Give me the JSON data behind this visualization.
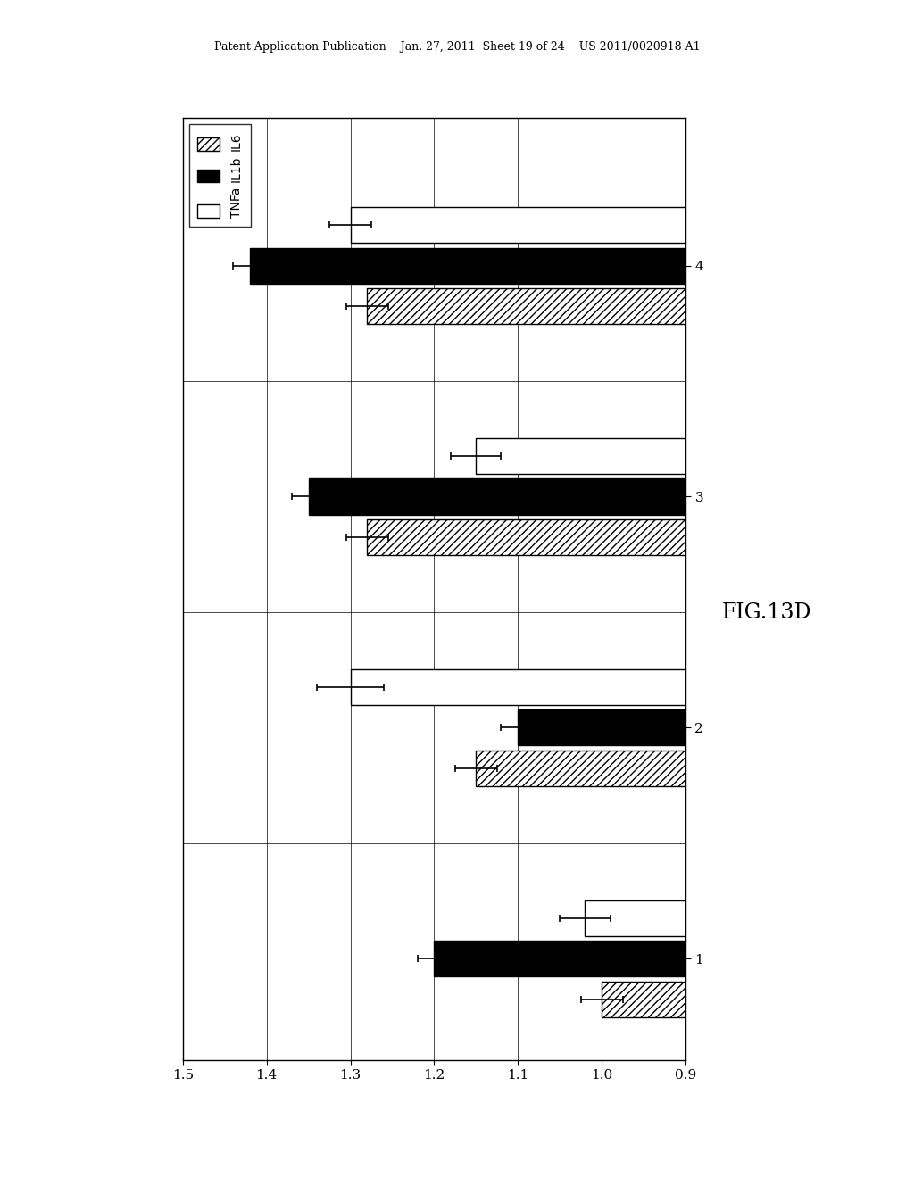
{
  "groups": [
    "1",
    "2",
    "3",
    "4"
  ],
  "series_labels": [
    "IL6",
    "IL1b",
    "TNFa"
  ],
  "values": {
    "TNFa": [
      1.02,
      1.3,
      1.15,
      1.3
    ],
    "IL1b": [
      1.2,
      1.1,
      1.35,
      1.42
    ],
    "IL6": [
      1.0,
      1.15,
      1.28,
      1.28
    ]
  },
  "errors": {
    "TNFa": [
      0.03,
      0.04,
      0.03,
      0.025
    ],
    "IL1b": [
      0.02,
      0.02,
      0.02,
      0.02
    ],
    "IL6": [
      0.025,
      0.025,
      0.025,
      0.025
    ]
  },
  "xlim": [
    0.9,
    1.5
  ],
  "xticks": [
    1.5,
    1.4,
    1.3,
    1.2,
    1.1,
    1.0,
    0.9
  ],
  "bar_height": 0.22,
  "background_color": "#ffffff",
  "fig_label": "FIG.13D",
  "header_text": "Patent Application Publication    Jan. 27, 2011  Sheet 19 of 24    US 2011/0020918 A1"
}
